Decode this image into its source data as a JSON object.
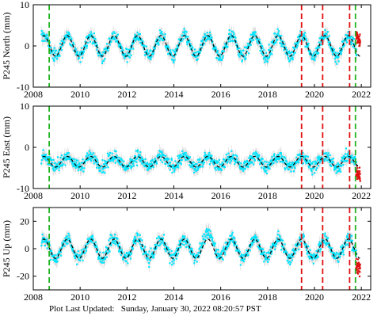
{
  "footer": {
    "label": "Plot Last Updated:",
    "timestamp": "Sunday, January 30, 2022 08:20:57 PST"
  },
  "colors": {
    "errorbars": "#b4b4b4",
    "daily_points": "#00e5ff",
    "model_fit": "#000000",
    "equipment_change": "#22b422",
    "event_marker": "#e01010",
    "recent_points": "#e01010"
  },
  "chart_data": [
    {
      "type": "scatter",
      "ylabel": "P245 North (mm)",
      "xlim": [
        2008,
        2022.4
      ],
      "ylim": [
        -10,
        10
      ],
      "xticks": [
        2008,
        2010,
        2012,
        2014,
        2016,
        2018,
        2020,
        2022
      ],
      "yticks": [
        -10,
        0,
        10
      ],
      "grid": false,
      "seasonal_fit": {
        "mean": 0,
        "amplitude": 2.5,
        "period_years": 1
      },
      "vlines_green": [
        2008.68,
        2021.75
      ],
      "vlines_red": [
        2019.45,
        2020.35,
        2021.5
      ]
    },
    {
      "type": "scatter",
      "ylabel": "P245 East (mm)",
      "xlim": [
        2008,
        2022.4
      ],
      "ylim": [
        -10,
        10
      ],
      "xticks": [
        2008,
        2010,
        2012,
        2014,
        2016,
        2018,
        2020,
        2022
      ],
      "yticks": [
        -10,
        0,
        10
      ],
      "grid": false,
      "seasonal_fit": {
        "mean": -3.5,
        "amplitude": 1.3,
        "period_years": 1
      },
      "vlines_green": [
        2008.68,
        2021.75
      ],
      "vlines_red": [
        2019.45,
        2020.35,
        2021.5
      ]
    },
    {
      "type": "scatter",
      "ylabel": "P245 Up (mm)",
      "xlim": [
        2008,
        2022.4
      ],
      "ylim": [
        -30,
        30
      ],
      "xticks": [
        2008,
        2010,
        2012,
        2014,
        2016,
        2018,
        2020,
        2022
      ],
      "yticks": [
        -20,
        0,
        20
      ],
      "grid": false,
      "seasonal_fit": {
        "mean": 0,
        "amplitude": 7,
        "period_years": 1
      },
      "vlines_green": [
        2008.68,
        2021.75
      ],
      "vlines_red": [
        2019.45,
        2020.35,
        2021.5
      ]
    }
  ]
}
